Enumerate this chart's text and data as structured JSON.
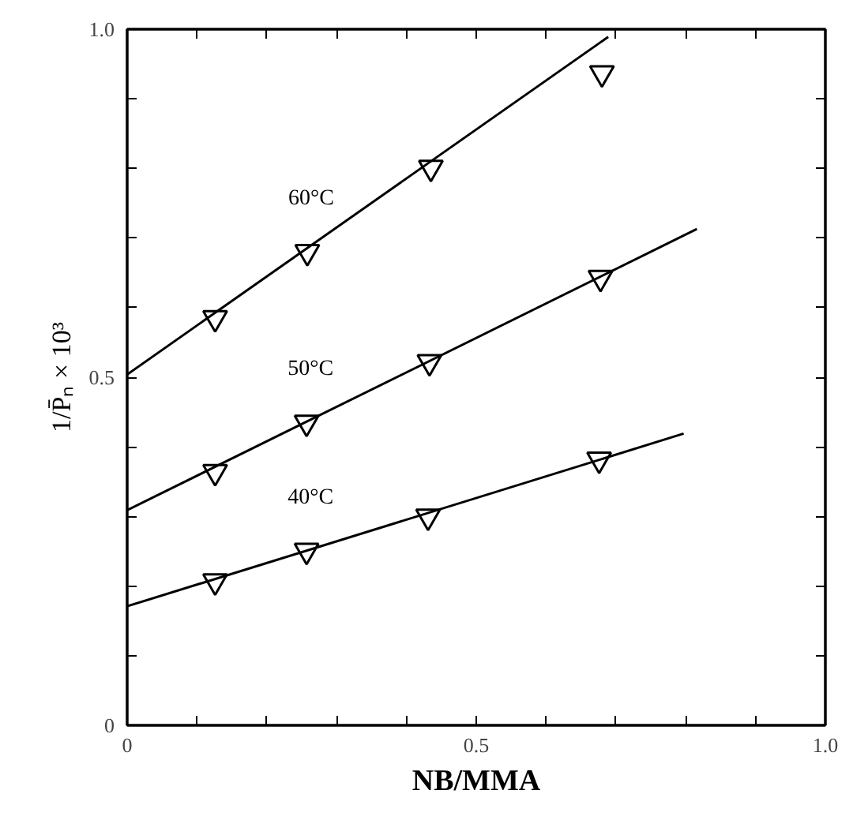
{
  "chart_data": {
    "type": "scatter",
    "xlabel": "NB/MMA",
    "ylabel": "1/P̄ₙ × 10³",
    "xlim": [
      0,
      1
    ],
    "ylim": [
      0,
      1
    ],
    "xticks": [
      0,
      {
        "value": 0.1,
        "label": null
      },
      {
        "value": 0.2,
        "label": null
      },
      {
        "value": 0.3,
        "label": null
      },
      {
        "value": 0.4,
        "label": null
      },
      0.5,
      {
        "value": 0.6,
        "label": null
      },
      {
        "value": 0.7,
        "label": null
      },
      {
        "value": 0.8,
        "label": null
      },
      {
        "value": 0.9,
        "label": null
      },
      {
        "value": 1,
        "label": "1.0"
      }
    ],
    "yticks": [
      0,
      {
        "value": 0.1,
        "label": null
      },
      {
        "value": 0.2,
        "label": null
      },
      {
        "value": 0.3,
        "label": null
      },
      {
        "value": 0.4,
        "label": null
      },
      0.5,
      {
        "value": 0.6,
        "label": null
      },
      {
        "value": 0.7,
        "label": null
      },
      {
        "value": 0.8,
        "label": null
      },
      {
        "value": 0.9,
        "label": null
      },
      {
        "value": 1,
        "label": "1.0"
      }
    ],
    "grid": false,
    "series": [
      {
        "name": "60°C",
        "marker": "triangle",
        "color": "#000000",
        "x": [
          0.126,
          0.258,
          0.435,
          0.68
        ],
        "values": [
          0.585,
          0.68,
          0.801,
          0.937
        ]
      },
      {
        "name": "50°C",
        "marker": "triangle",
        "color": "#000000",
        "x": [
          0.126,
          0.257,
          0.433,
          0.678
        ],
        "values": [
          0.364,
          0.435,
          0.522,
          0.643
        ]
      },
      {
        "name": "40°C",
        "marker": "triangle",
        "color": "#000000",
        "x": [
          0.126,
          0.257,
          0.431,
          0.676
        ],
        "values": [
          0.207,
          0.251,
          0.3,
          0.382
        ]
      },
      {
        "type": "line",
        "color": "#000000",
        "line_style": "solid",
        "x": [
          0,
          0.689
        ],
        "values": [
          0.504,
          0.989
        ]
      },
      {
        "type": "line",
        "color": "#000000",
        "line_style": "solid",
        "x": [
          0,
          0.816
        ],
        "values": [
          0.309,
          0.713
        ]
      },
      {
        "type": "line",
        "color": "#000000",
        "line_style": "solid",
        "x": [
          0,
          0.797
        ],
        "values": [
          0.171,
          0.419
        ]
      }
    ]
  }
}
